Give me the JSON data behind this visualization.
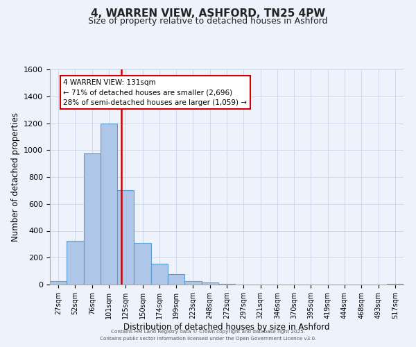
{
  "title": "4, WARREN VIEW, ASHFORD, TN25 4PW",
  "subtitle": "Size of property relative to detached houses in Ashford",
  "xlabel": "Distribution of detached houses by size in Ashford",
  "ylabel": "Number of detached properties",
  "bar_labels": [
    "27sqm",
    "52sqm",
    "76sqm",
    "101sqm",
    "125sqm",
    "150sqm",
    "174sqm",
    "199sqm",
    "223sqm",
    "248sqm",
    "272sqm",
    "297sqm",
    "321sqm",
    "346sqm",
    "370sqm",
    "395sqm",
    "419sqm",
    "444sqm",
    "468sqm",
    "493sqm",
    "517sqm"
  ],
  "bar_values": [
    25,
    325,
    975,
    1200,
    700,
    310,
    155,
    75,
    25,
    15,
    5,
    0,
    0,
    0,
    0,
    0,
    0,
    0,
    0,
    0,
    5
  ],
  "bar_color": "#aec6e8",
  "bar_edge_color": "#5a9fd4",
  "vline_color": "#cc0000",
  "ylim": [
    0,
    1600
  ],
  "yticks": [
    0,
    200,
    400,
    600,
    800,
    1000,
    1200,
    1400,
    1600
  ],
  "annotation_title": "4 WARREN VIEW: 131sqm",
  "annotation_line1": "← 71% of detached houses are smaller (2,696)",
  "annotation_line2": "28% of semi-detached houses are larger (1,059) →",
  "footer_line1": "Contains HM Land Registry data © Crown copyright and database right 2025.",
  "footer_line2": "Contains public sector information licensed under the Open Government Licence v3.0.",
  "bg_color": "#eef2fb",
  "grid_color": "#c8d4e8",
  "title_fontsize": 11,
  "subtitle_fontsize": 9,
  "vline_pos": 3.74
}
